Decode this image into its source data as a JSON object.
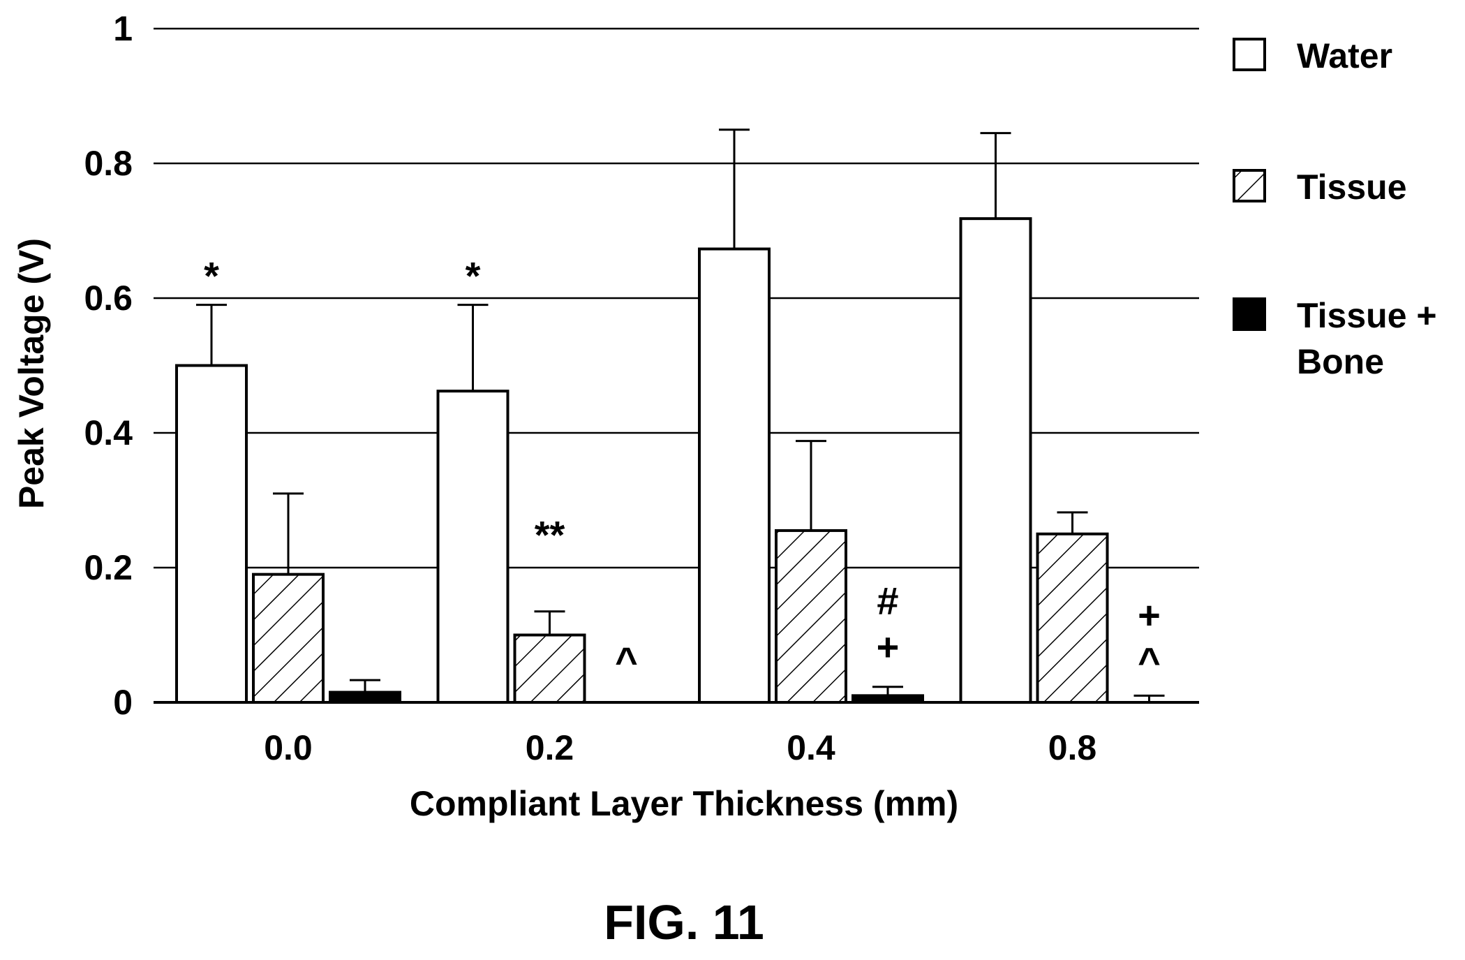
{
  "chart_data": {
    "type": "bar",
    "categories": [
      "0.0",
      "0.2",
      "0.4",
      "0.8"
    ],
    "xlabel": "Compliant Layer Thickness (mm)",
    "ylabel": "Peak Voltage (V)",
    "ylim": [
      0,
      1
    ],
    "yticks": [
      {
        "value": 0,
        "label": "0"
      },
      {
        "value": 0.2,
        "label": "0.2"
      },
      {
        "value": 0.4,
        "label": "0.4"
      },
      {
        "value": 0.6,
        "label": "0.6"
      },
      {
        "value": 0.8,
        "label": "0.8"
      },
      {
        "value": 1,
        "label": "1"
      }
    ],
    "grid": "horizontal",
    "legend_position": "right",
    "series": [
      {
        "name": "Water",
        "fill": "open",
        "values": [
          0.5,
          0.462,
          0.673,
          0.718
        ],
        "errors": [
          0.59,
          0.59,
          0.85,
          0.845
        ]
      },
      {
        "name": "Tissue",
        "fill": "hatched",
        "values": [
          0.19,
          0.1,
          0.255,
          0.25
        ],
        "errors": [
          0.31,
          0.135,
          0.388,
          0.282
        ]
      },
      {
        "name": "Tissue + Bone",
        "legend_lines": [
          "Tissue +",
          "Bone"
        ],
        "fill": "solid",
        "values": [
          0.015,
          0.0,
          0.01,
          0.0
        ],
        "errors": [
          0.033,
          0.0,
          0.023,
          0.01
        ]
      }
    ],
    "annotations": [
      {
        "text": "*",
        "category": 0,
        "series": 0
      },
      {
        "text": "*",
        "category": 1,
        "series": 0
      },
      {
        "text": "**",
        "category": 1,
        "series": 1
      },
      {
        "text": "^",
        "category": 1,
        "series": 2
      },
      {
        "text": "#",
        "category": 2,
        "series": 2
      },
      {
        "text": "+",
        "category": 2,
        "series": 2
      },
      {
        "text": "+",
        "category": 3,
        "series": 2
      },
      {
        "text": "^",
        "category": 3,
        "series": 2
      }
    ]
  },
  "caption": "FIG. 11"
}
